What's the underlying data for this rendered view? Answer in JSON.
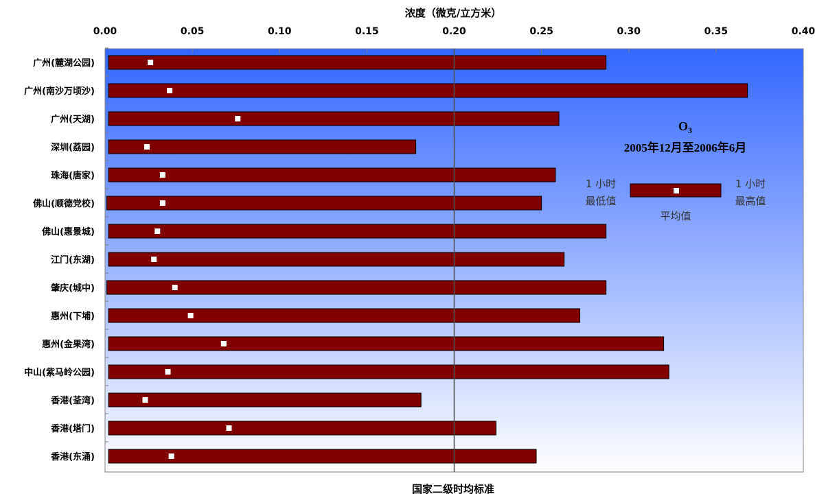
{
  "chart_data": {
    "type": "bar",
    "subtype": "range",
    "title": "O3",
    "title_main": "O",
    "title_sub": "3",
    "subtitle": "2005年12月至2006年6月",
    "xlabel": "浓度（微克/立方米）",
    "xlim": [
      0,
      0.4
    ],
    "x_ticks": [
      "0.00",
      "0.05",
      "0.10",
      "0.15",
      "0.20",
      "0.25",
      "0.30",
      "0.35",
      "0.40"
    ],
    "reference_line": {
      "value": 0.2,
      "label": "国家二级时均标准"
    },
    "legend": {
      "position": "right",
      "min_label_line1": "1 小时",
      "min_label_line2": "最低值",
      "max_label_line1": "1 小时",
      "max_label_line2": "最高值",
      "avg_label": "平均值"
    },
    "categories": [
      "广州(麓湖公园)",
      "广州(南沙万顷沙)",
      "广州(天湖)",
      "深圳(荔园)",
      "珠海(唐家)",
      "佛山(顺德党校)",
      "佛山(惠景城)",
      "江门(东湖)",
      "肇庆(城中)",
      "惠州(下埔)",
      "惠州(金果湾)",
      "中山(紫马岭公园)",
      "香港(荃湾)",
      "香港(塔门)",
      "香港(东涌)"
    ],
    "series": [
      {
        "name": "1小时最低值",
        "values": [
          0.002,
          0.002,
          0.002,
          0.002,
          0.002,
          0.001,
          0.002,
          0.002,
          0.001,
          0.002,
          0.002,
          0.002,
          0.002,
          0.002,
          0.002
        ]
      },
      {
        "name": "平均值",
        "values": [
          0.026,
          0.037,
          0.076,
          0.024,
          0.033,
          0.033,
          0.03,
          0.028,
          0.04,
          0.049,
          0.068,
          0.036,
          0.023,
          0.071,
          0.038
        ]
      },
      {
        "name": "1小时最高值",
        "values": [
          0.287,
          0.368,
          0.26,
          0.178,
          0.258,
          0.25,
          0.287,
          0.263,
          0.287,
          0.272,
          0.32,
          0.323,
          0.181,
          0.224,
          0.247
        ]
      }
    ],
    "colors": {
      "bar": "#800000",
      "marker": "#ffffff",
      "grad_top": "#3366ff",
      "grad_bottom": "#ffffff",
      "ref_line": "#505050"
    },
    "grid": false
  }
}
